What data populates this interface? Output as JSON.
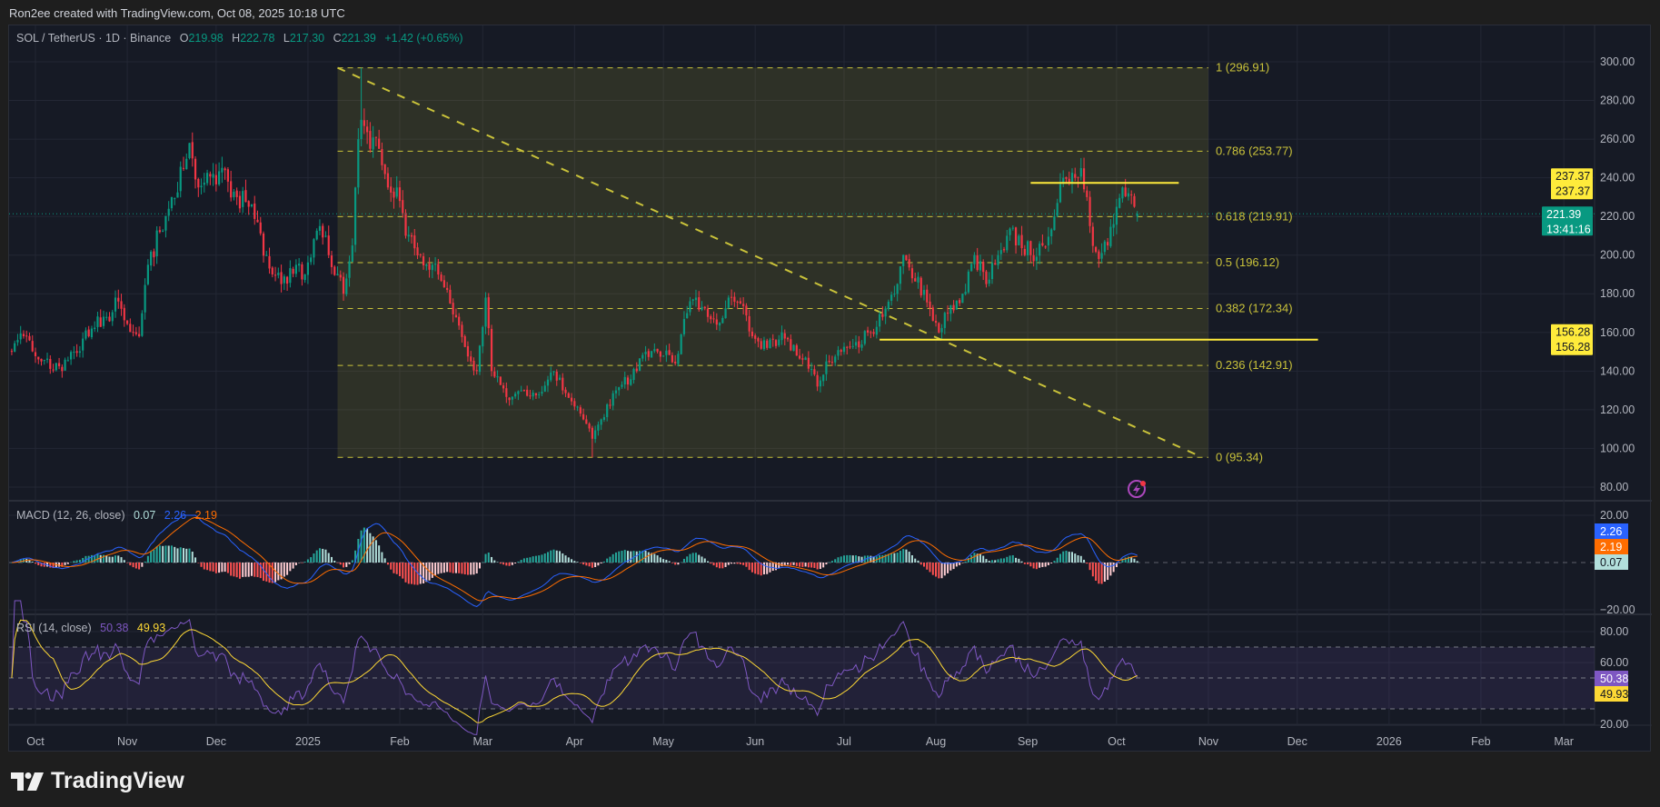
{
  "credit": "Ron2ee created with TradingView.com, Oct 08, 2025 10:18 UTC",
  "symbol": {
    "title": "SOL / TetherUS · 1D · Binance",
    "o_label": "O",
    "open": "219.98",
    "h_label": "H",
    "high": "222.78",
    "l_label": "L",
    "low": "217.30",
    "c_label": "C",
    "close": "221.39",
    "change": "+1.42 (+0.65%)"
  },
  "colors": {
    "up": "#089981",
    "down": "#f23645",
    "fib": "#c9c23a",
    "hline": "#ffeb3b",
    "macd": "#2962ff",
    "signal": "#ff6d00",
    "rsi": "#7e57c2",
    "rsi_ma": "#fdd835"
  },
  "price_axis": {
    "ticks": [
      "300.00",
      "280.00",
      "260.00",
      "240.00",
      "220.00",
      "200.00",
      "180.00",
      "160.00",
      "140.00",
      "120.00",
      "100.00",
      "80.00"
    ],
    "current_price": "221.39",
    "countdown": "13:41:16",
    "hline_labels": [
      {
        "value": "237.37",
        "label": "237.37"
      },
      {
        "value": "156.28",
        "label": "156.28"
      }
    ]
  },
  "fibonacci": {
    "levels": [
      {
        "ratio": "1",
        "price": 296.91,
        "label": "1 (296.91)"
      },
      {
        "ratio": "0.786",
        "price": 253.77,
        "label": "0.786 (253.77)"
      },
      {
        "ratio": "0.618",
        "price": 219.91,
        "label": "0.618 (219.91)"
      },
      {
        "ratio": "0.5",
        "price": 196.12,
        "label": "0.5 (196.12)"
      },
      {
        "ratio": "0.382",
        "price": 172.34,
        "label": "0.382 (172.34)"
      },
      {
        "ratio": "0.236",
        "price": 142.91,
        "label": "0.236 (142.91)"
      },
      {
        "ratio": "0",
        "price": 95.34,
        "label": "0 (95.34)"
      }
    ]
  },
  "macd": {
    "title": "MACD (12, 26, close)",
    "hist": "0.07",
    "macd": "2.26",
    "signal": "2.19",
    "ticks": [
      "20.00",
      "−20.00"
    ]
  },
  "rsi": {
    "title": "RSI (14, close)",
    "value": "50.38",
    "ma": "49.93",
    "ticks": [
      "80.00",
      "60.00",
      "20.00"
    ]
  },
  "time_axis": [
    {
      "label": "Oct",
      "date": "2024-10-01"
    },
    {
      "label": "Nov",
      "date": "2024-11-01"
    },
    {
      "label": "Dec",
      "date": "2024-12-01"
    },
    {
      "label": "2025",
      "date": "2025-01-01"
    },
    {
      "label": "Feb",
      "date": "2025-02-01"
    },
    {
      "label": "Mar",
      "date": "2025-03-01"
    },
    {
      "label": "Apr",
      "date": "2025-04-01"
    },
    {
      "label": "May",
      "date": "2025-05-01"
    },
    {
      "label": "Jun",
      "date": "2025-06-01"
    },
    {
      "label": "Jul",
      "date": "2025-07-01"
    },
    {
      "label": "Aug",
      "date": "2025-08-01"
    },
    {
      "label": "Sep",
      "date": "2025-09-01"
    },
    {
      "label": "Oct",
      "date": "2025-10-01"
    },
    {
      "label": "Nov",
      "date": "2025-11-01"
    },
    {
      "label": "Dec",
      "date": "2025-12-01"
    },
    {
      "label": "2026",
      "date": "2026-01-01"
    },
    {
      "label": "Feb",
      "date": "2026-02-01"
    },
    {
      "label": "Mar",
      "date": "2026-03-01"
    }
  ],
  "chart_data": {
    "type": "candlestick",
    "title": "SOL / TetherUS · 1D · Binance",
    "ylim": [
      80,
      300
    ],
    "grid": true,
    "approx_closes": [
      [
        "2024-09-23",
        150
      ],
      [
        "2024-09-27",
        158
      ],
      [
        "2024-10-03",
        145
      ],
      [
        "2024-10-10",
        140
      ],
      [
        "2024-10-14",
        150
      ],
      [
        "2024-10-20",
        162
      ],
      [
        "2024-10-25",
        168
      ],
      [
        "2024-10-29",
        176
      ],
      [
        "2024-11-03",
        160
      ],
      [
        "2024-11-05",
        158
      ],
      [
        "2024-11-08",
        195
      ],
      [
        "2024-11-12",
        212
      ],
      [
        "2024-11-16",
        230
      ],
      [
        "2024-11-20",
        245
      ],
      [
        "2024-11-22",
        258
      ],
      [
        "2024-11-25",
        235
      ],
      [
        "2024-11-30",
        242
      ],
      [
        "2024-12-05",
        238
      ],
      [
        "2024-12-08",
        230
      ],
      [
        "2024-12-12",
        225
      ],
      [
        "2024-12-18",
        200
      ],
      [
        "2024-12-20",
        190
      ],
      [
        "2024-12-23",
        185
      ],
      [
        "2024-12-28",
        195
      ],
      [
        "2024-12-31",
        190
      ],
      [
        "2025-01-05",
        215
      ],
      [
        "2025-01-08",
        200
      ],
      [
        "2025-01-13",
        180
      ],
      [
        "2025-01-16",
        205
      ],
      [
        "2025-01-18",
        260
      ],
      [
        "2025-01-19",
        270
      ],
      [
        "2025-01-22",
        255
      ],
      [
        "2025-01-25",
        255
      ],
      [
        "2025-01-28",
        235
      ],
      [
        "2025-01-31",
        235
      ],
      [
        "2025-02-03",
        210
      ],
      [
        "2025-02-08",
        200
      ],
      [
        "2025-02-12",
        195
      ],
      [
        "2025-02-18",
        175
      ],
      [
        "2025-02-25",
        145
      ],
      [
        "2025-02-27",
        140
      ],
      [
        "2025-03-02",
        178
      ],
      [
        "2025-03-04",
        140
      ],
      [
        "2025-03-10",
        125
      ],
      [
        "2025-03-15",
        130
      ],
      [
        "2025-03-20",
        128
      ],
      [
        "2025-03-25",
        140
      ],
      [
        "2025-03-28",
        130
      ],
      [
        "2025-04-03",
        118
      ],
      [
        "2025-04-07",
        105
      ],
      [
        "2025-04-10",
        115
      ],
      [
        "2025-04-15",
        130
      ],
      [
        "2025-04-22",
        140
      ],
      [
        "2025-04-25",
        150
      ],
      [
        "2025-05-01",
        148
      ],
      [
        "2025-05-05",
        144
      ],
      [
        "2025-05-09",
        170
      ],
      [
        "2025-05-12",
        178
      ],
      [
        "2025-05-16",
        168
      ],
      [
        "2025-05-20",
        165
      ],
      [
        "2025-05-23",
        178
      ],
      [
        "2025-05-27",
        175
      ],
      [
        "2025-05-31",
        158
      ],
      [
        "2025-06-05",
        152
      ],
      [
        "2025-06-10",
        160
      ],
      [
        "2025-06-15",
        148
      ],
      [
        "2025-06-18",
        147
      ],
      [
        "2025-06-22",
        132
      ],
      [
        "2025-06-25",
        145
      ],
      [
        "2025-06-30",
        150
      ],
      [
        "2025-07-05",
        155
      ],
      [
        "2025-07-10",
        160
      ],
      [
        "2025-07-14",
        168
      ],
      [
        "2025-07-18",
        180
      ],
      [
        "2025-07-21",
        200
      ],
      [
        "2025-07-24",
        188
      ],
      [
        "2025-07-28",
        182
      ],
      [
        "2025-08-01",
        165
      ],
      [
        "2025-08-02",
        160
      ],
      [
        "2025-08-05",
        170
      ],
      [
        "2025-08-10",
        180
      ],
      [
        "2025-08-14",
        200
      ],
      [
        "2025-08-18",
        185
      ],
      [
        "2025-08-22",
        200
      ],
      [
        "2025-08-25",
        210
      ],
      [
        "2025-08-29",
        210
      ],
      [
        "2025-09-02",
        200
      ],
      [
        "2025-09-06",
        205
      ],
      [
        "2025-09-10",
        220
      ],
      [
        "2025-09-13",
        240
      ],
      [
        "2025-09-17",
        240
      ],
      [
        "2025-09-19",
        245
      ],
      [
        "2025-09-21",
        230
      ],
      [
        "2025-09-22",
        215
      ],
      [
        "2025-09-25",
        198
      ],
      [
        "2025-09-28",
        205
      ],
      [
        "2025-10-01",
        225
      ],
      [
        "2025-10-03",
        235
      ],
      [
        "2025-10-05",
        232
      ],
      [
        "2025-10-07",
        225
      ],
      [
        "2025-10-08",
        221.39
      ]
    ],
    "last_candle": {
      "open": 219.98,
      "high": 222.78,
      "low": 217.3,
      "close": 221.39
    },
    "swing_high": {
      "date": "2025-01-19",
      "price": 296.91
    },
    "swing_low": {
      "date": "2025-04-07",
      "price": 95.34
    },
    "horizontal_levels": [
      237.37,
      156.28
    ]
  }
}
